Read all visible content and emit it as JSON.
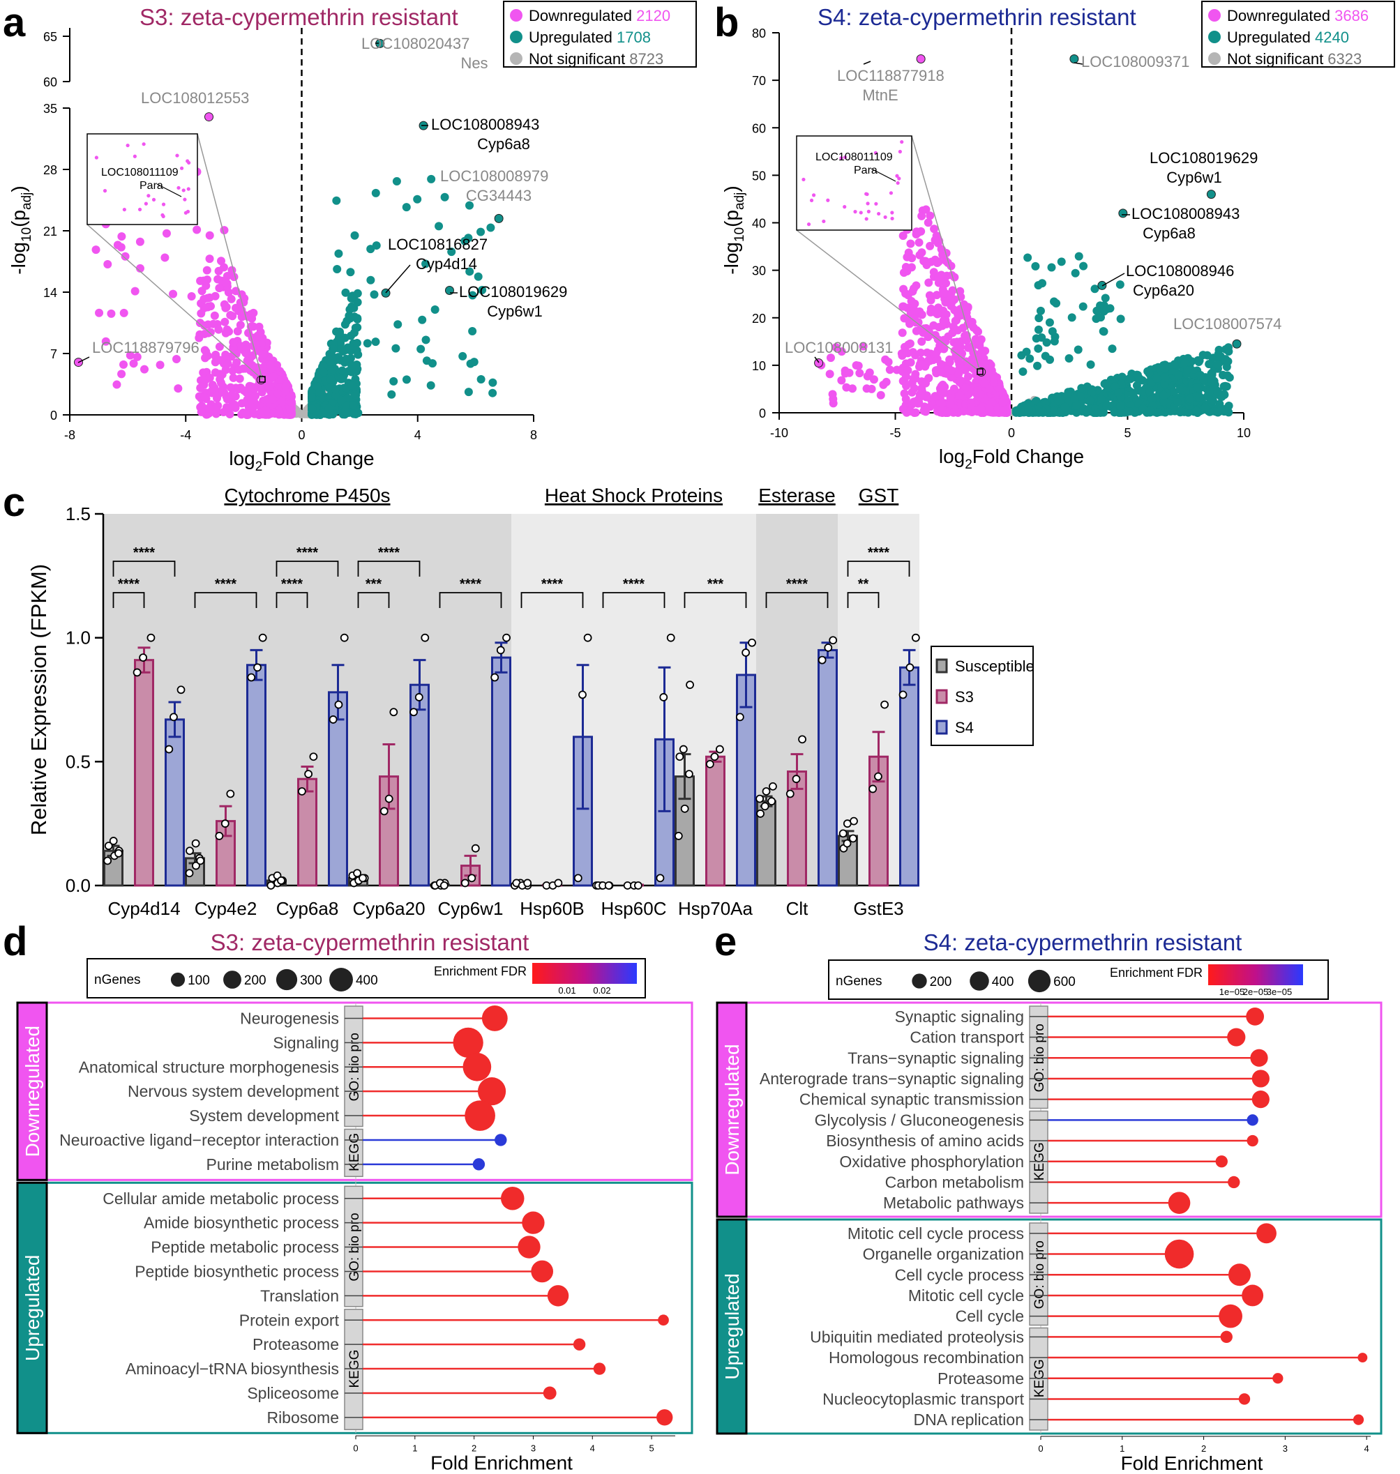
{
  "colors": {
    "down": "#f055f0",
    "up": "#11908a",
    "ns": "#b5b5b5",
    "s3": "#a02865",
    "s4": "#1c2a94",
    "susc": "#333333",
    "red": "#f02b2b",
    "blue": "#2a3ad8"
  },
  "panels": {
    "a": "a",
    "b": "b",
    "c": "c",
    "d": "d",
    "e": "e"
  },
  "chart_data": [
    {
      "id": "a",
      "type": "scatter",
      "title": "S3: zeta-cypermethrin resistant",
      "xlabel_main": "log",
      "xlabel_sub": "2",
      "xlabel_rest": "Fold Change",
      "ylabel_pre": "-log",
      "ylabel_sub": "10",
      "ylabel_mid": "(p",
      "ylabel_sub2": "adj",
      "ylabel_post": ")",
      "xticks": [
        "-8",
        "-4",
        "0",
        "4",
        "8"
      ],
      "yticks_lower": [
        "0",
        "7",
        "14",
        "21",
        "28",
        "35"
      ],
      "yticks_upper": [
        "60",
        "65"
      ],
      "xlim": [
        -8,
        8
      ],
      "legend": [
        {
          "label": "Downregulated",
          "count": "2120"
        },
        {
          "label": "Upregulated",
          "count": "1708"
        },
        {
          "label": "Not significant",
          "count": "8723"
        }
      ],
      "annotations": [
        {
          "line1": "LOC108020437",
          "line2": "Nes",
          "tone": "gray"
        },
        {
          "line1": "LOC108012553",
          "line2": "",
          "tone": "gray"
        },
        {
          "line1": "LOC108008943",
          "line2": "Cyp6a8",
          "tone": "black"
        },
        {
          "line1": "LOC108008979",
          "line2": "CG34443",
          "tone": "gray"
        },
        {
          "line1": "LOC10816827",
          "line2": "Cyp4d14",
          "tone": "black"
        },
        {
          "line1": "LOC108019629",
          "line2": "Cyp6w1",
          "tone": "black"
        },
        {
          "line1": "LOC118879796",
          "line2": "",
          "tone": "gray"
        }
      ],
      "inset": {
        "line1": "LOC108011109",
        "line2": "Para"
      },
      "highlight_points": [
        {
          "x": 2.7,
          "y": 64.2,
          "dir": "up"
        },
        {
          "x": -3.2,
          "y": 34.0,
          "dir": "down"
        },
        {
          "x": 4.2,
          "y": 33.0,
          "dir": "up"
        },
        {
          "x": 6.8,
          "y": 22.4,
          "dir": "up"
        },
        {
          "x": 2.9,
          "y": 13.9,
          "dir": "up"
        },
        {
          "x": 5.1,
          "y": 14.2,
          "dir": "up"
        },
        {
          "x": -7.7,
          "y": 6.0,
          "dir": "down"
        },
        {
          "x": -1.4,
          "y": 4.0,
          "dir": "down"
        }
      ]
    },
    {
      "id": "b",
      "type": "scatter",
      "title": "S4: zeta-cypermethrin resistant",
      "xlabel_main": "log",
      "xlabel_sub": "2",
      "xlabel_rest": "Fold Change",
      "ylabel_pre": "-log",
      "ylabel_sub": "10",
      "ylabel_mid": "(p",
      "ylabel_sub2": "adj",
      "ylabel_post": ")",
      "xticks": [
        "-10",
        "-5",
        "0",
        "5",
        "10"
      ],
      "yticks": [
        "0",
        "10",
        "20",
        "30",
        "40",
        "50",
        "60",
        "70",
        "80"
      ],
      "xlim": [
        -10,
        10
      ],
      "ylim": [
        0,
        80
      ],
      "legend": [
        {
          "label": "Downregulated",
          "count": "3686"
        },
        {
          "label": "Upregulated",
          "count": "4240"
        },
        {
          "label": "Not significant",
          "count": "6323"
        }
      ],
      "annotations": [
        {
          "line1": "LOC118877918",
          "line2": "MtnE",
          "tone": "gray"
        },
        {
          "line1": "LOC108009371",
          "line2": "",
          "tone": "gray"
        },
        {
          "line1": "LOC108019629",
          "line2": "Cyp6w1",
          "tone": "black"
        },
        {
          "line1": "LOC108008943",
          "line2": "Cyp6a8",
          "tone": "black"
        },
        {
          "line1": "LOC108008946",
          "line2": "Cyp6a20",
          "tone": "black"
        },
        {
          "line1": "LOC108007574",
          "line2": "",
          "tone": "gray"
        },
        {
          "line1": "LOC108008131",
          "line2": "",
          "tone": "gray"
        }
      ],
      "inset": {
        "line1": "LOC108011109",
        "line2": "Para"
      },
      "highlight_points": [
        {
          "x": -3.9,
          "y": 74.5,
          "dir": "down"
        },
        {
          "x": 2.7,
          "y": 74.5,
          "dir": "up"
        },
        {
          "x": 8.6,
          "y": 46.0,
          "dir": "up"
        },
        {
          "x": 4.8,
          "y": 42.0,
          "dir": "up"
        },
        {
          "x": 3.9,
          "y": 26.8,
          "dir": "up"
        },
        {
          "x": 9.7,
          "y": 14.5,
          "dir": "up"
        },
        {
          "x": -8.3,
          "y": 10.5,
          "dir": "down"
        },
        {
          "x": -1.3,
          "y": 8.6,
          "dir": "down"
        }
      ]
    },
    {
      "id": "c",
      "type": "bar",
      "ylabel": "Relative Expression (FPKM)",
      "yticks": [
        "0.0",
        "0.5",
        "1.0",
        "1.5"
      ],
      "ylim": [
        0,
        1.5
      ],
      "groups": [
        {
          "label": "Cytochrome P450s",
          "span": [
            0,
            4
          ]
        },
        {
          "label": "Heat Shock Proteins",
          "span": [
            5,
            7
          ]
        },
        {
          "label": "Esterase",
          "span": [
            8,
            8
          ]
        },
        {
          "label": "GST",
          "span": [
            9,
            9
          ]
        }
      ],
      "categories": [
        "Cyp4d14",
        "Cyp4e2",
        "Cyp6a8",
        "Cyp6a20",
        "Cyp6w1",
        "Hsp60B",
        "Hsp60C",
        "Hsp70Aa",
        "Clt",
        "GstE3"
      ],
      "series": [
        {
          "name": "Susceptible",
          "values": [
            0.14,
            0.11,
            0.02,
            0.03,
            0.003,
            0.003,
            0.002,
            0.44,
            0.34,
            0.2
          ],
          "err": [
            0.02,
            0.02,
            0.005,
            0.006,
            0.002,
            0.002,
            0.001,
            0.09,
            0.02,
            0.02
          ]
        },
        {
          "name": "S3",
          "values": [
            0.91,
            0.26,
            0.43,
            0.44,
            0.08,
            0.002,
            0.003,
            0.52,
            0.46,
            0.52
          ],
          "err": [
            0.05,
            0.06,
            0.05,
            0.13,
            0.04,
            0.001,
            0.001,
            0.02,
            0.07,
            0.1
          ]
        },
        {
          "name": "S4",
          "values": [
            0.67,
            0.89,
            0.78,
            0.81,
            0.92,
            0.6,
            0.59,
            0.85,
            0.95,
            0.88
          ],
          "err": [
            0.07,
            0.06,
            0.11,
            0.1,
            0.06,
            0.29,
            0.29,
            0.13,
            0.03,
            0.07
          ]
        }
      ],
      "points": [
        [
          [
            0.1,
            0.12,
            0.14,
            0.16,
            0.18,
            0.13
          ],
          [
            0.86,
            0.92,
            1.0
          ],
          [
            0.55,
            0.68,
            0.79
          ]
        ],
        [
          [
            0.05,
            0.08,
            0.11,
            0.14,
            0.17,
            0.1
          ],
          [
            0.2,
            0.25,
            0.37
          ],
          [
            0.84,
            0.88,
            1.0
          ]
        ],
        [
          [
            0.0,
            0.01,
            0.02,
            0.03,
            0.04,
            0.02
          ],
          [
            0.38,
            0.45,
            0.52
          ],
          [
            0.67,
            0.73,
            1.0
          ]
        ],
        [
          [
            0.01,
            0.02,
            0.03,
            0.04,
            0.05,
            0.03
          ],
          [
            0.3,
            0.35,
            0.7
          ],
          [
            0.7,
            0.76,
            1.0
          ]
        ],
        [
          [
            0.0,
            0.0,
            0.01,
            0.0,
            0.01,
            0.0
          ],
          [
            0.01,
            0.03,
            0.15
          ],
          [
            0.84,
            0.95,
            1.0
          ]
        ],
        [
          [
            0.0,
            0.01,
            0.0,
            0.01,
            0.0,
            0.01
          ],
          [
            0.0,
            0.0,
            0.01
          ],
          [
            0.03,
            0.77,
            1.0
          ]
        ],
        [
          [
            0.0,
            0.0,
            0.0,
            0.0,
            0.0,
            0.0
          ],
          [
            0.0,
            0.0,
            0.0
          ],
          [
            0.03,
            0.76,
            1.0
          ]
        ],
        [
          [
            0.2,
            0.31,
            0.45,
            0.52,
            0.55,
            0.81
          ],
          [
            0.49,
            0.52,
            0.55
          ],
          [
            0.68,
            0.94,
            0.98
          ]
        ],
        [
          [
            0.29,
            0.32,
            0.34,
            0.35,
            0.38,
            0.4
          ],
          [
            0.37,
            0.43,
            0.59
          ],
          [
            0.91,
            0.96,
            0.99
          ]
        ],
        [
          [
            0.15,
            0.17,
            0.19,
            0.21,
            0.25,
            0.26
          ],
          [
            0.39,
            0.44,
            0.73
          ],
          [
            0.77,
            0.88,
            1.0
          ]
        ]
      ],
      "comparisons": [
        {
          "cat": 0,
          "from": 0,
          "to": 1,
          "label": "****",
          "level": 0
        },
        {
          "cat": 0,
          "from": 0,
          "to": 2,
          "label": "****",
          "level": 1
        },
        {
          "cat": 1,
          "from": 0,
          "to": 2,
          "label": "****",
          "level": 0
        },
        {
          "cat": 2,
          "from": 0,
          "to": 1,
          "label": "****",
          "level": 0
        },
        {
          "cat": 2,
          "from": 0,
          "to": 2,
          "label": "****",
          "level": 1
        },
        {
          "cat": 3,
          "from": 0,
          "to": 1,
          "label": "***",
          "level": 0
        },
        {
          "cat": 3,
          "from": 0,
          "to": 2,
          "label": "****",
          "level": 1
        },
        {
          "cat": 4,
          "from": 0,
          "to": 2,
          "label": "****",
          "level": 0
        },
        {
          "cat": 5,
          "from": 0,
          "to": 2,
          "label": "****",
          "level": 0
        },
        {
          "cat": 6,
          "from": 0,
          "to": 2,
          "label": "****",
          "level": 0
        },
        {
          "cat": 7,
          "from": 0,
          "to": 2,
          "label": "***",
          "level": 0
        },
        {
          "cat": 8,
          "from": 0,
          "to": 2,
          "label": "****",
          "level": 0
        },
        {
          "cat": 9,
          "from": 0,
          "to": 1,
          "label": "**",
          "level": 0
        },
        {
          "cat": 9,
          "from": 0,
          "to": 2,
          "label": "****",
          "level": 1
        }
      ]
    },
    {
      "id": "d",
      "type": "lollipop",
      "title": "S3: zeta-cypermethrin resistant",
      "xlabel": "Fold Enrichment",
      "xticks": [
        "0",
        "1",
        "2",
        "3",
        "4",
        "5"
      ],
      "xlim": [
        0,
        5.4
      ],
      "size_legend_title": "nGenes",
      "size_legend": [
        {
          "label": "100",
          "n": 100
        },
        {
          "label": "200",
          "n": 200
        },
        {
          "label": "300",
          "n": 300
        },
        {
          "label": "400",
          "n": 400
        }
      ],
      "color_legend_title": "Enrichment FDR",
      "color_ticks": [
        "0.01",
        "0.02"
      ],
      "side_down": "Downregulated",
      "side_up": "Upregulated",
      "src_go": "GO: bio pro",
      "src_kegg": "KEGG",
      "down": [
        {
          "term": "Neurogenesis",
          "fe": 2.35,
          "n": 280,
          "src": "GO",
          "c": "red"
        },
        {
          "term": "Signaling",
          "fe": 1.9,
          "n": 420,
          "src": "GO",
          "c": "red"
        },
        {
          "term": "Anatomical structure morphogenesis",
          "fe": 2.05,
          "n": 360,
          "src": "GO",
          "c": "red"
        },
        {
          "term": "Nervous system development",
          "fe": 2.3,
          "n": 350,
          "src": "GO",
          "c": "red"
        },
        {
          "term": "System development",
          "fe": 2.1,
          "n": 430,
          "src": "GO",
          "c": "red"
        },
        {
          "term": "Neuroactive ligand−receptor interaction",
          "fe": 2.45,
          "n": 30,
          "src": "KEGG",
          "c": "blue"
        },
        {
          "term": "Purine metabolism",
          "fe": 2.08,
          "n": 30,
          "src": "KEGG",
          "c": "blue"
        }
      ],
      "up": [
        {
          "term": "Cellular amide metabolic process",
          "fe": 2.65,
          "n": 220,
          "src": "GO",
          "c": "red"
        },
        {
          "term": "Amide biosynthetic process",
          "fe": 3.0,
          "n": 200,
          "src": "GO",
          "c": "red"
        },
        {
          "term": "Peptide metabolic process",
          "fe": 2.93,
          "n": 200,
          "src": "GO",
          "c": "red"
        },
        {
          "term": "Peptide biosynthetic process",
          "fe": 3.15,
          "n": 190,
          "src": "GO",
          "c": "red"
        },
        {
          "term": "Translation",
          "fe": 3.42,
          "n": 170,
          "src": "GO",
          "c": "red"
        },
        {
          "term": "Protein export",
          "fe": 5.2,
          "n": 20,
          "src": "KEGG",
          "c": "red"
        },
        {
          "term": "Proteasome",
          "fe": 3.78,
          "n": 30,
          "src": "KEGG",
          "c": "red"
        },
        {
          "term": "Aminoacyl−tRNA biosynthesis",
          "fe": 4.12,
          "n": 30,
          "src": "KEGG",
          "c": "red"
        },
        {
          "term": "Spliceosome",
          "fe": 3.28,
          "n": 40,
          "src": "KEGG",
          "c": "red"
        },
        {
          "term": "Ribosome",
          "fe": 5.22,
          "n": 80,
          "src": "KEGG",
          "c": "red"
        }
      ]
    },
    {
      "id": "e",
      "type": "lollipop",
      "title": "S4: zeta-cypermethrin resistant",
      "xlabel": "Fold Enrichment",
      "xticks": [
        "0",
        "1",
        "2",
        "3",
        "4"
      ],
      "xlim": [
        0,
        4.05
      ],
      "size_legend_title": "nGenes",
      "size_legend": [
        {
          "label": "200",
          "n": 200
        },
        {
          "label": "400",
          "n": 400
        },
        {
          "label": "600",
          "n": 600
        }
      ],
      "color_legend_title": "Enrichment FDR",
      "color_ticks": [
        "1e−05",
        "2e−05",
        "3e−05"
      ],
      "side_down": "Downregulated",
      "side_up": "Upregulated",
      "src_go": "GO: bio pro",
      "src_kegg": "KEGG",
      "down": [
        {
          "term": "Synaptic signaling",
          "fe": 2.63,
          "n": 180,
          "src": "GO",
          "c": "red"
        },
        {
          "term": "Cation transport",
          "fe": 2.4,
          "n": 190,
          "src": "GO",
          "c": "red"
        },
        {
          "term": "Trans−synaptic signaling",
          "fe": 2.68,
          "n": 170,
          "src": "GO",
          "c": "red"
        },
        {
          "term": "Anterograde trans−synaptic signaling",
          "fe": 2.7,
          "n": 170,
          "src": "GO",
          "c": "red"
        },
        {
          "term": "Chemical synaptic transmission",
          "fe": 2.7,
          "n": 170,
          "src": "GO",
          "c": "red"
        },
        {
          "term": "Glycolysis / Gluconeogenesis",
          "fe": 2.6,
          "n": 40,
          "src": "KEGG",
          "c": "blue"
        },
        {
          "term": "Biosynthesis of amino acids",
          "fe": 2.6,
          "n": 40,
          "src": "KEGG",
          "c": "red"
        },
        {
          "term": "Oxidative phosphorylation",
          "fe": 2.22,
          "n": 50,
          "src": "KEGG",
          "c": "red"
        },
        {
          "term": "Carbon metabolism",
          "fe": 2.37,
          "n": 50,
          "src": "KEGG",
          "c": "red"
        },
        {
          "term": "Metabolic pathways",
          "fe": 1.7,
          "n": 320,
          "src": "KEGG",
          "c": "red"
        }
      ],
      "up": [
        {
          "term": "Mitotic cell cycle process",
          "fe": 2.77,
          "n": 250,
          "src": "GO",
          "c": "red"
        },
        {
          "term": "Organelle organization",
          "fe": 1.7,
          "n": 650,
          "src": "GO",
          "c": "red"
        },
        {
          "term": "Cell cycle process",
          "fe": 2.44,
          "n": 330,
          "src": "GO",
          "c": "red"
        },
        {
          "term": "Mitotic cell cycle",
          "fe": 2.6,
          "n": 300,
          "src": "GO",
          "c": "red"
        },
        {
          "term": "Cell cycle",
          "fe": 2.33,
          "n": 380,
          "src": "GO",
          "c": "red"
        },
        {
          "term": "Ubiquitin mediated proteolysis",
          "fe": 2.28,
          "n": 50,
          "src": "KEGG",
          "c": "red"
        },
        {
          "term": "Homologous recombination",
          "fe": 3.95,
          "n": 20,
          "src": "KEGG",
          "c": "red"
        },
        {
          "term": "Proteasome",
          "fe": 2.91,
          "n": 30,
          "src": "KEGG",
          "c": "red"
        },
        {
          "term": "Nucleocytoplasmic transport",
          "fe": 2.5,
          "n": 40,
          "src": "KEGG",
          "c": "red"
        },
        {
          "term": "DNA replication",
          "fe": 3.9,
          "n": 30,
          "src": "KEGG",
          "c": "red"
        }
      ]
    }
  ]
}
